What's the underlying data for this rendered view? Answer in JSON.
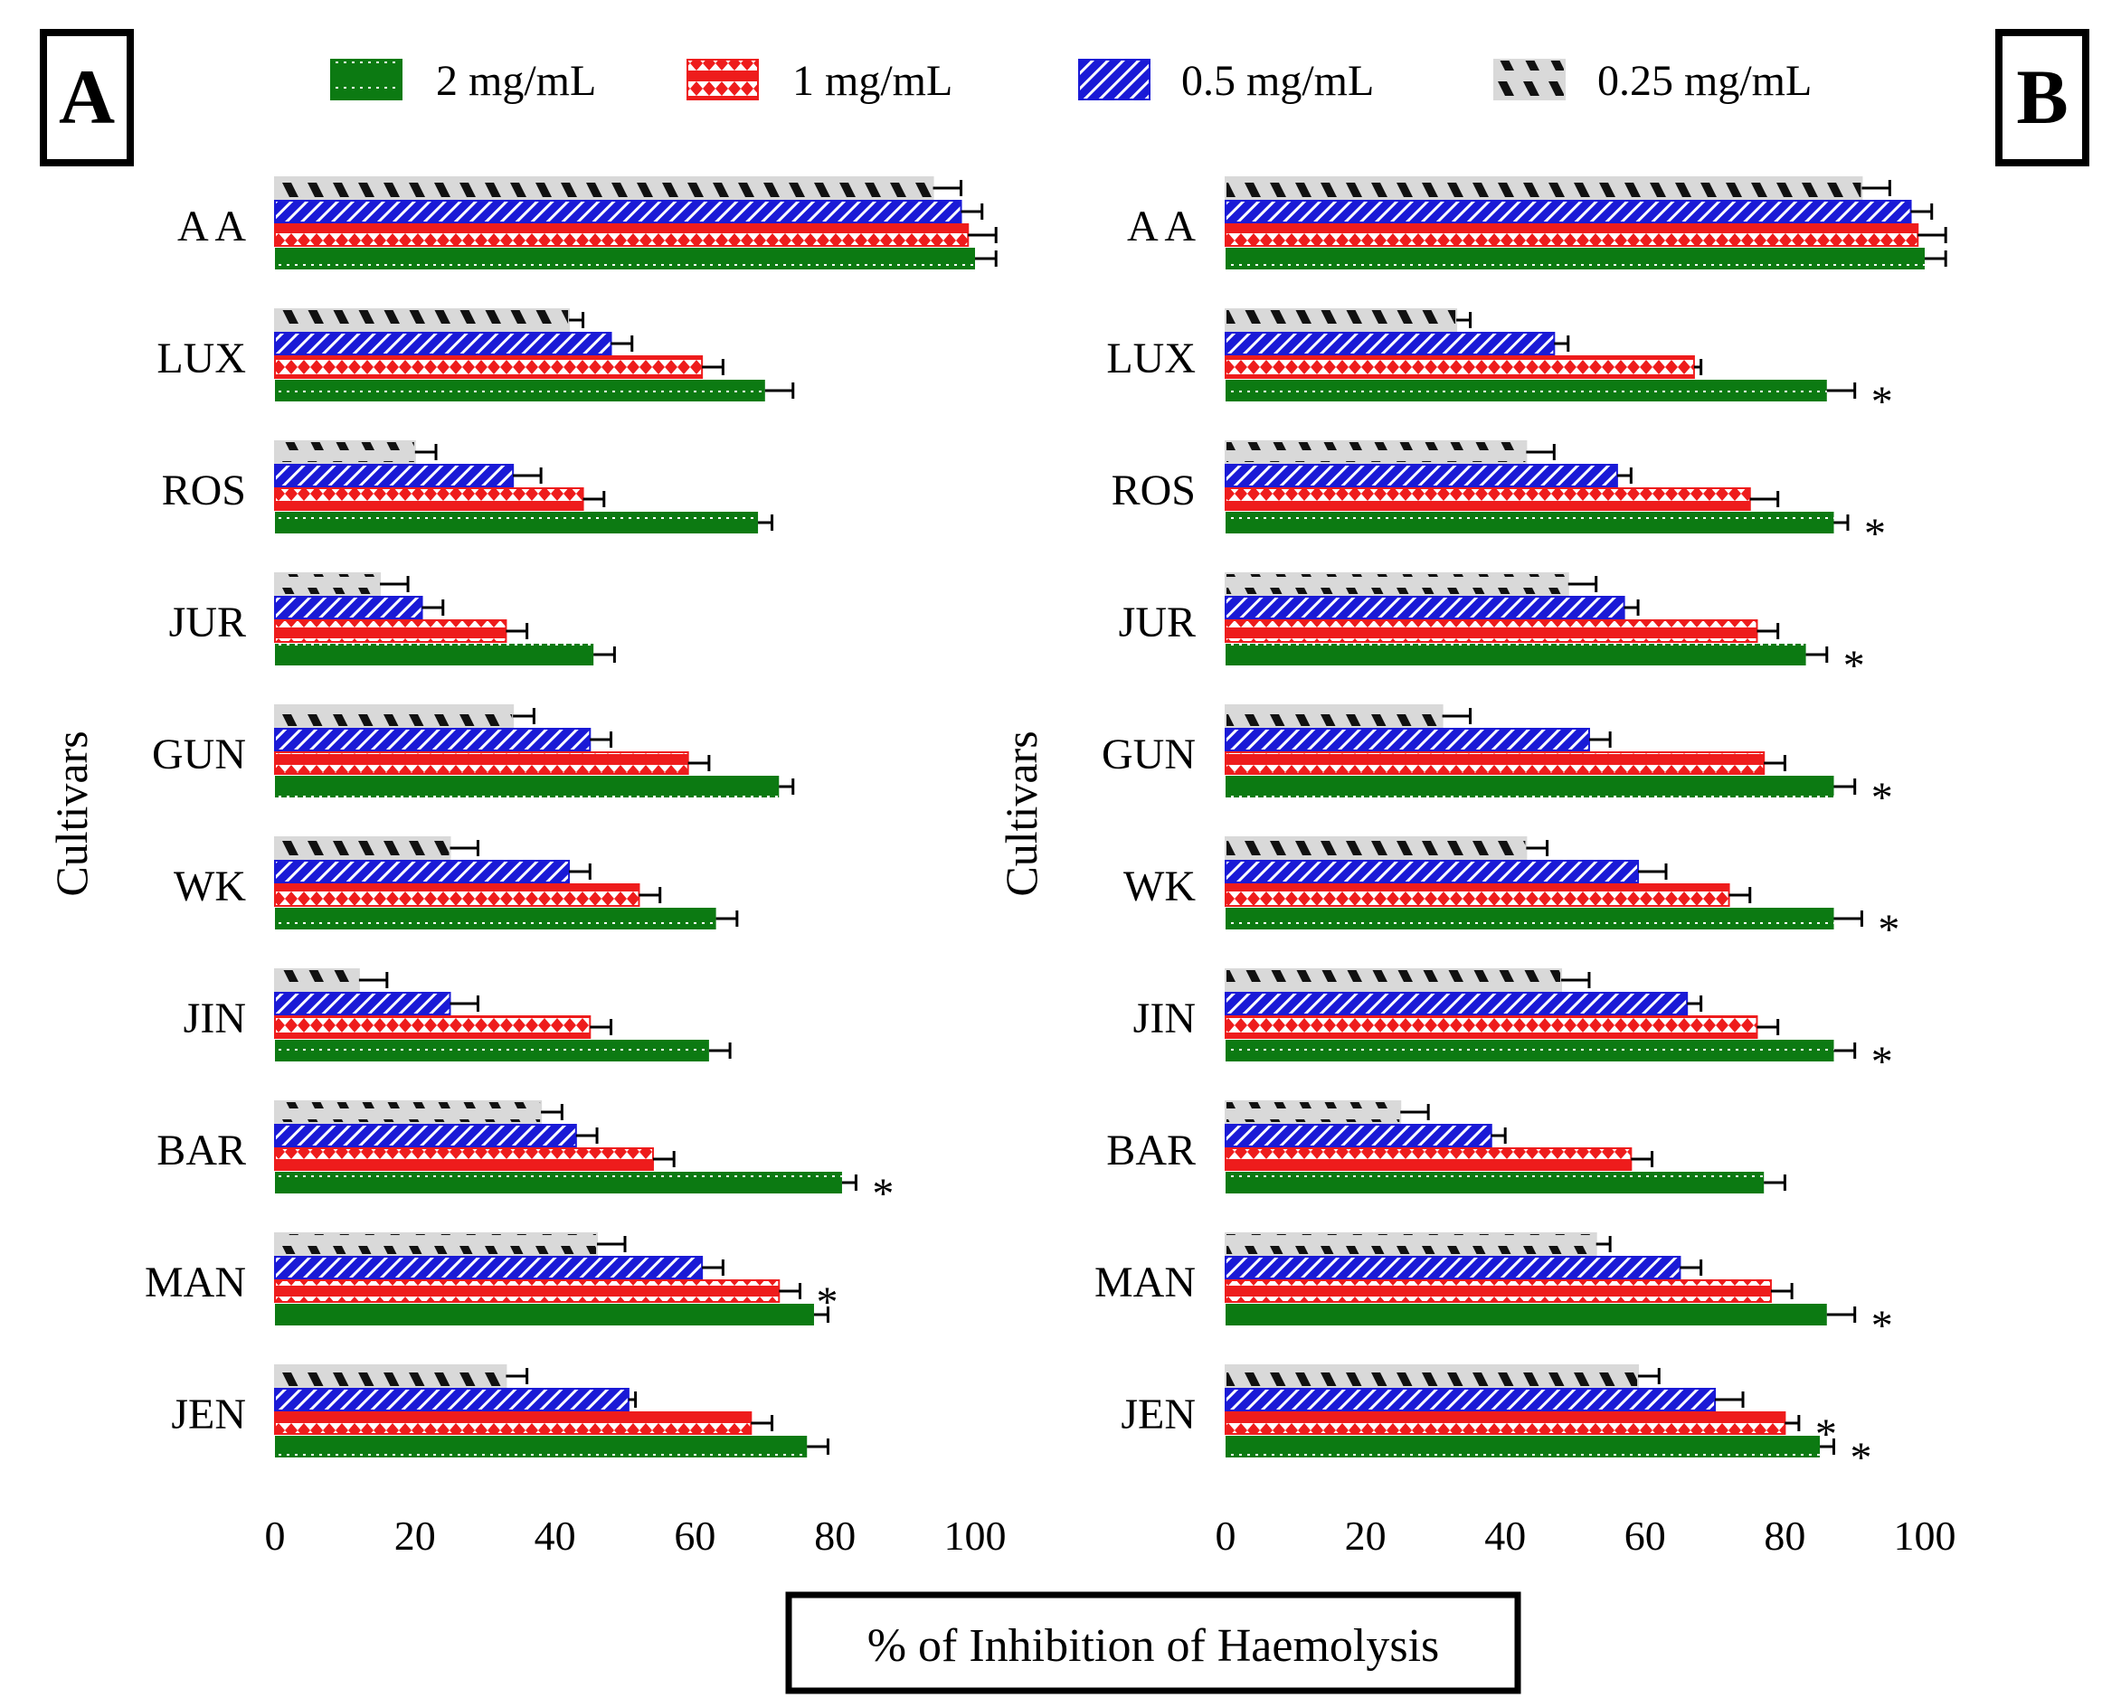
{
  "figure": {
    "x_axis_title": "% of Inhibition of Haemolysis",
    "y_axis_title": "Cultivars",
    "significance_marker": "*"
  },
  "legend": [
    {
      "label": "2 mg/mL",
      "color": "#0c7a12",
      "pattern": "dots"
    },
    {
      "label": "1 mg/mL",
      "color": "#ee1c1c",
      "pattern": "diamonds"
    },
    {
      "label": "0.5 mg/mL",
      "color": "#1a1ad6",
      "pattern": "diagonal"
    },
    {
      "label": "0.25 mg/mL",
      "color": "#d9d9d9",
      "pattern": "black-stripes"
    }
  ],
  "chart_data": [
    {
      "type": "bar",
      "orientation": "horizontal",
      "panel_label": "A",
      "categories": [
        "A A",
        "LUX",
        "ROS",
        "JUR",
        "GUN",
        "WK",
        "JIN",
        "BAR",
        "MAN",
        "JEN"
      ],
      "xlim": [
        0,
        100
      ],
      "xticks": [
        0,
        20,
        40,
        60,
        80,
        100
      ],
      "xlabel": "% of Inhibition of Haemolysis",
      "ylabel": "Cultivars",
      "series": [
        {
          "name": "2 mg/mL",
          "values": [
            100,
            70,
            69,
            45.5,
            72,
            63,
            62,
            81,
            77,
            76
          ],
          "errors": [
            3,
            4,
            2,
            3,
            2,
            3,
            3,
            2,
            2,
            3
          ],
          "significant": [
            false,
            false,
            false,
            false,
            false,
            false,
            false,
            true,
            false,
            false
          ]
        },
        {
          "name": "1 mg/mL",
          "values": [
            99,
            61,
            44,
            33,
            59,
            52,
            45,
            54,
            72,
            68
          ],
          "errors": [
            4,
            3,
            3,
            3,
            3,
            3,
            3,
            3,
            3,
            3
          ],
          "significant": [
            false,
            false,
            false,
            false,
            false,
            false,
            false,
            false,
            true,
            false
          ]
        },
        {
          "name": "0.5 mg/mL",
          "values": [
            98,
            48,
            34,
            21,
            45,
            42,
            25,
            43,
            61,
            50.5
          ],
          "errors": [
            3,
            3,
            4,
            3,
            3,
            3,
            4,
            3,
            3,
            1
          ],
          "significant": [
            false,
            false,
            false,
            false,
            false,
            false,
            false,
            false,
            false,
            false
          ]
        },
        {
          "name": "0.25 mg/mL",
          "values": [
            94,
            42,
            20,
            15,
            34,
            25,
            12,
            38,
            46,
            33
          ],
          "errors": [
            4,
            2,
            3,
            4,
            3,
            4,
            4,
            3,
            4,
            3
          ],
          "significant": [
            false,
            false,
            false,
            false,
            false,
            false,
            false,
            false,
            false,
            false
          ]
        }
      ]
    },
    {
      "type": "bar",
      "orientation": "horizontal",
      "panel_label": "B",
      "categories": [
        "A A",
        "LUX",
        "ROS",
        "JUR",
        "GUN",
        "WK",
        "JIN",
        "BAR",
        "MAN",
        "JEN"
      ],
      "xlim": [
        0,
        100
      ],
      "xticks": [
        0,
        20,
        40,
        60,
        80,
        100
      ],
      "xlabel": "% of Inhibition of Haemolysis",
      "ylabel": "Cultivars",
      "series": [
        {
          "name": "2 mg/mL",
          "values": [
            100,
            86,
            87,
            83,
            87,
            87,
            87,
            77,
            86,
            85
          ],
          "errors": [
            3,
            4,
            2,
            3,
            3,
            4,
            3,
            3,
            4,
            2
          ],
          "significant": [
            false,
            true,
            true,
            true,
            true,
            true,
            true,
            false,
            true,
            true
          ]
        },
        {
          "name": "1 mg/mL",
          "values": [
            99,
            67,
            75,
            76,
            77,
            72,
            76,
            58,
            78,
            80
          ],
          "errors": [
            4,
            1,
            4,
            3,
            3,
            3,
            3,
            3,
            3,
            2
          ],
          "significant": [
            false,
            false,
            false,
            false,
            false,
            false,
            false,
            false,
            false,
            true
          ]
        },
        {
          "name": "0.5 mg/mL",
          "values": [
            98,
            47,
            56,
            57,
            52,
            59,
            66,
            38,
            65,
            70
          ],
          "errors": [
            3,
            2,
            2,
            2,
            3,
            4,
            2,
            2,
            3,
            4
          ],
          "significant": [
            false,
            false,
            false,
            false,
            false,
            false,
            false,
            false,
            false,
            false
          ]
        },
        {
          "name": "0.25 mg/mL",
          "values": [
            91,
            33,
            43,
            49,
            31,
            43,
            48,
            25,
            53,
            59
          ],
          "errors": [
            4,
            2,
            4,
            4,
            4,
            3,
            4,
            4,
            2,
            3
          ],
          "significant": [
            false,
            false,
            false,
            false,
            false,
            false,
            false,
            false,
            false,
            false
          ]
        }
      ]
    }
  ]
}
